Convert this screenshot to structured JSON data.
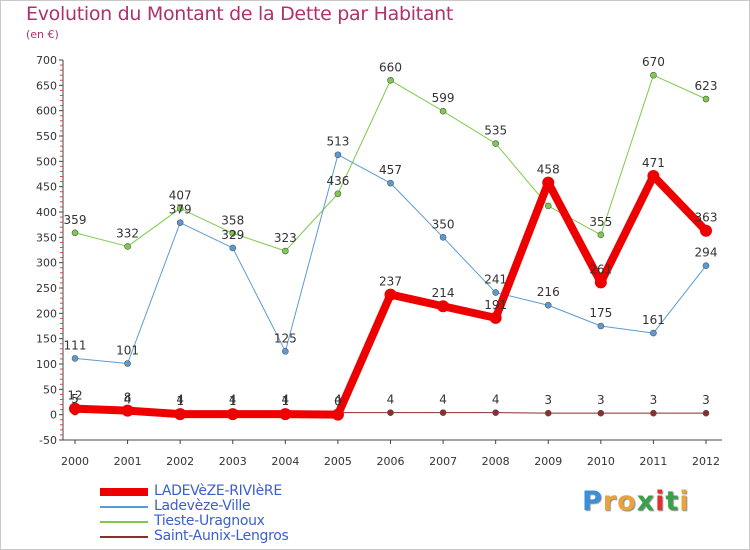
{
  "title": "Evolution du Montant de la Dette par Habitant",
  "subtitle": "(en €)",
  "chart_data": {
    "type": "line",
    "x": [
      "2000",
      "2001",
      "2002",
      "2003",
      "2004",
      "2005",
      "2006",
      "2007",
      "2008",
      "2009",
      "2010",
      "2011",
      "2012"
    ],
    "ylim": [
      -50,
      700
    ],
    "yticks": [
      -50,
      0,
      50,
      100,
      150,
      200,
      250,
      300,
      350,
      400,
      450,
      500,
      550,
      600,
      650,
      700
    ],
    "grid": false,
    "series": [
      {
        "name": "Tieste-Uragnoux",
        "color": "#7ecb4b",
        "values": [
          359,
          332,
          407,
          358,
          323,
          436,
          660,
          599,
          535,
          412,
          355,
          670,
          623
        ],
        "labels": [
          "359",
          "332",
          "407",
          "358",
          "323",
          "436",
          "660",
          "599",
          "535",
          "",
          "355",
          "670",
          "623"
        ]
      },
      {
        "name": "Ladevèze-Ville",
        "color": "#5b9bd5",
        "values": [
          111,
          101,
          379,
          329,
          125,
          513,
          457,
          350,
          241,
          216,
          175,
          161,
          294
        ],
        "labels": [
          "111",
          "101",
          "379",
          "329",
          "125",
          "513",
          "457",
          "350",
          "241",
          "216",
          "175",
          "161",
          "294"
        ]
      },
      {
        "name": "Saint-Aunix-Lengros",
        "color": "#8b2e2e",
        "values": [
          5,
          4,
          4,
          4,
          4,
          4,
          4,
          4,
          4,
          3,
          3,
          3,
          3
        ],
        "labels": [
          "5",
          "4",
          "4",
          "4",
          "4",
          "4",
          "4",
          "4",
          "4",
          "3",
          "3",
          "3",
          "3"
        ]
      },
      {
        "name": "LADEVèZE-RIVIèRE",
        "color": "#ee0000",
        "values": [
          12,
          8,
          1,
          1,
          1,
          0,
          237,
          214,
          191,
          458,
          261,
          471,
          363
        ],
        "labels": [
          "12",
          "8",
          "1",
          "1",
          "1",
          "0",
          "237",
          "214",
          "191",
          "458",
          "261",
          "471",
          "363"
        ]
      }
    ]
  },
  "legend": {
    "items": [
      {
        "label": "LADEVèZE-RIVIèRE",
        "color": "#ee0000"
      },
      {
        "label": "Ladevèze-Ville",
        "color": "#5b9bd5"
      },
      {
        "label": "Tieste-Uragnoux",
        "color": "#7ecb4b"
      },
      {
        "label": "Saint-Aunix-Lengros",
        "color": "#8b2e2e"
      }
    ]
  },
  "logo": {
    "letters": [
      "P",
      "r",
      "o",
      "x",
      "i",
      "t",
      "i"
    ],
    "colors": [
      "#3b8fd9",
      "#e8a33d",
      "#e8a33d",
      "#3aa04a",
      "#e0312e",
      "#3aa04a",
      "#e8a33d"
    ]
  }
}
